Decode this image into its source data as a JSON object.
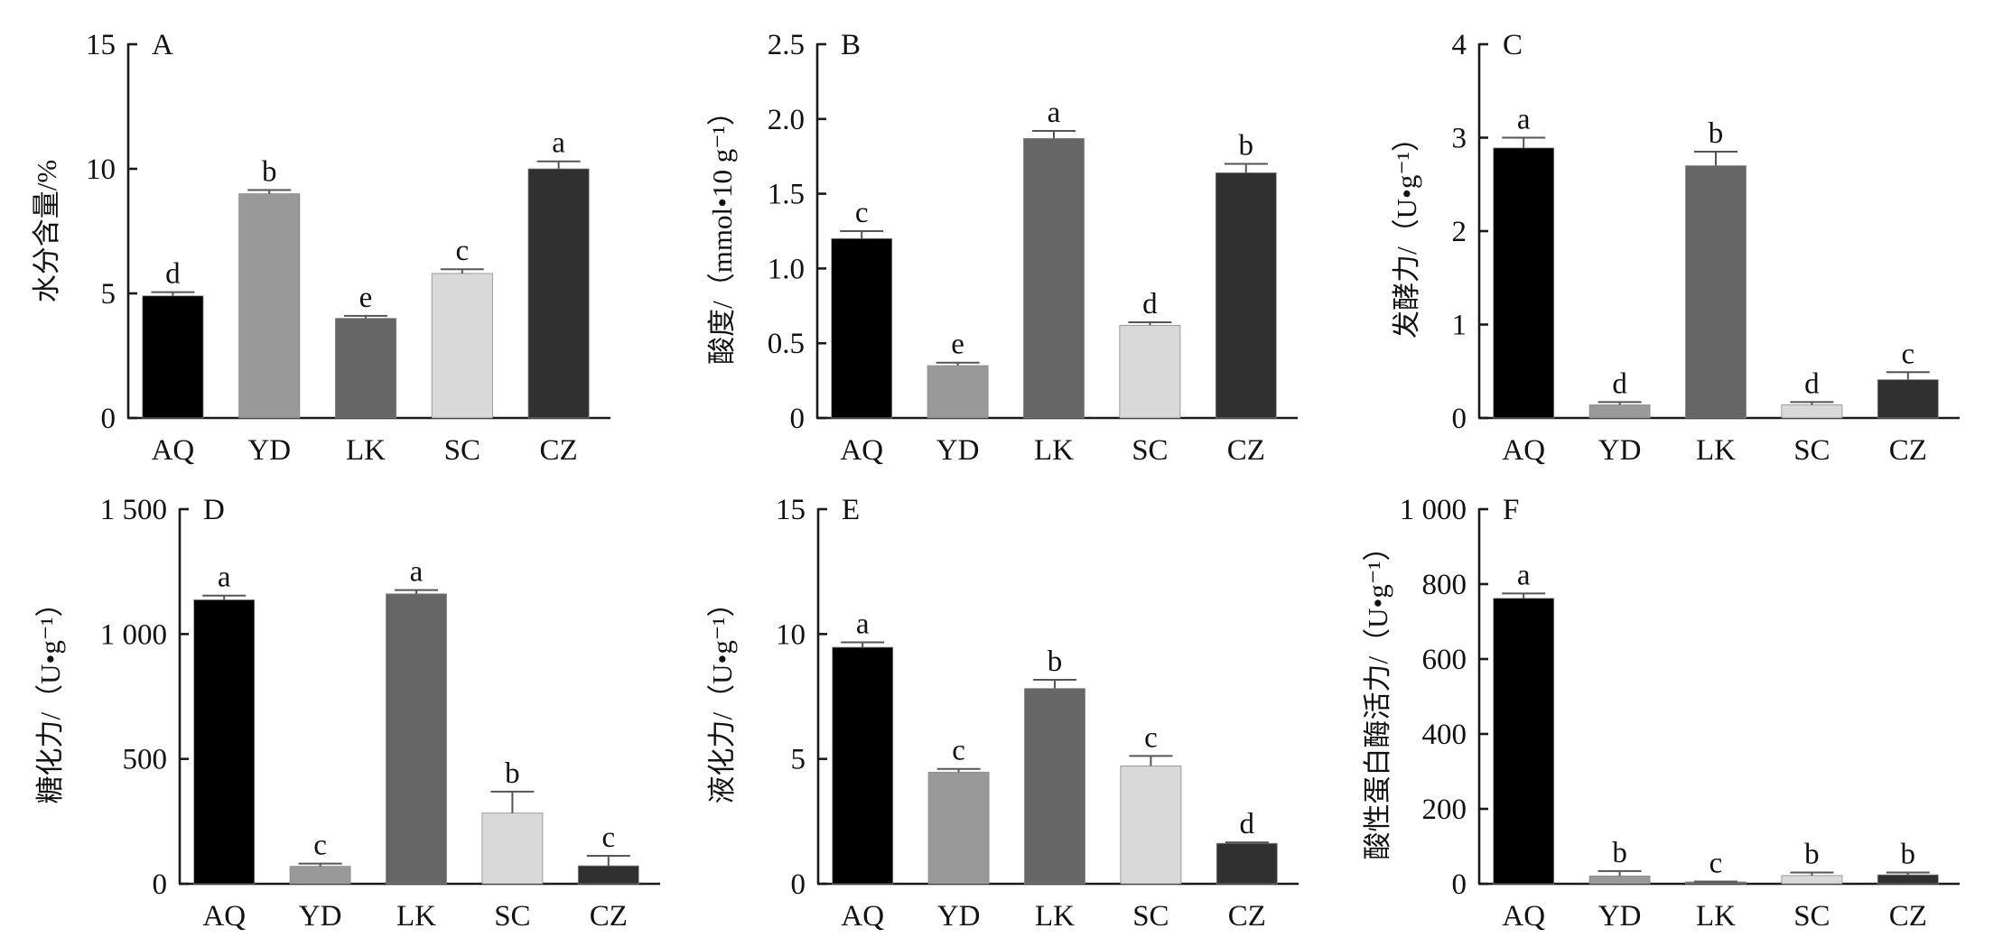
{
  "categories": [
    "AQ",
    "YD",
    "LK",
    "SC",
    "CZ"
  ],
  "bar_colors": {
    "AQ": "#000000",
    "YD": "#999999",
    "LK": "#666666",
    "SC": "#d9d9d9",
    "CZ": "#303030"
  },
  "chart_data": [
    {
      "type": "bar",
      "panel": "A",
      "title": "",
      "xlabel": "",
      "ylabel": "水分含量/%",
      "categories": [
        "AQ",
        "YD",
        "LK",
        "SC",
        "CZ"
      ],
      "values": [
        4.9,
        9.0,
        4.0,
        5.8,
        10.0
      ],
      "errors": [
        0.15,
        0.15,
        0.1,
        0.17,
        0.3
      ],
      "significance": [
        "d",
        "b",
        "e",
        "c",
        "a"
      ],
      "ylim": [
        0,
        15
      ],
      "yticks": [
        0,
        5,
        10,
        15
      ],
      "ytick_labels": [
        "0",
        "5",
        "10",
        "15"
      ],
      "grid": false,
      "legend": "none"
    },
    {
      "type": "bar",
      "panel": "B",
      "title": "",
      "xlabel": "",
      "ylabel": "酸度/（mmol•10 g⁻¹）",
      "categories": [
        "AQ",
        "YD",
        "LK",
        "SC",
        "CZ"
      ],
      "values": [
        1.2,
        0.35,
        1.87,
        0.62,
        1.64
      ],
      "errors": [
        0.05,
        0.02,
        0.05,
        0.02,
        0.06
      ],
      "significance": [
        "c",
        "e",
        "a",
        "d",
        "b"
      ],
      "ylim": [
        0,
        2.5
      ],
      "yticks": [
        0,
        0.5,
        1.0,
        1.5,
        2.0,
        2.5
      ],
      "ytick_labels": [
        "0",
        "0.5",
        "1.0",
        "1.5",
        "2.0",
        "2.5"
      ],
      "grid": false,
      "legend": "none"
    },
    {
      "type": "bar",
      "panel": "C",
      "title": "",
      "xlabel": "",
      "ylabel": "发酵力/（U•g⁻¹）",
      "categories": [
        "AQ",
        "YD",
        "LK",
        "SC",
        "CZ"
      ],
      "values": [
        2.89,
        0.14,
        2.7,
        0.14,
        0.41
      ],
      "errors": [
        0.11,
        0.03,
        0.15,
        0.03,
        0.08
      ],
      "significance": [
        "a",
        "d",
        "b",
        "d",
        "c"
      ],
      "ylim": [
        0,
        4
      ],
      "yticks": [
        0,
        1,
        2,
        3,
        4
      ],
      "ytick_labels": [
        "0",
        "1",
        "2",
        "3",
        "4"
      ],
      "grid": false,
      "legend": "none"
    },
    {
      "type": "bar",
      "panel": "D",
      "title": "",
      "xlabel": "",
      "ylabel": "糖化力/（U•g⁻¹）",
      "categories": [
        "AQ",
        "YD",
        "LK",
        "SC",
        "CZ"
      ],
      "values": [
        1137,
        70,
        1161,
        283,
        72
      ],
      "errors": [
        17,
        11,
        15,
        86,
        40
      ],
      "significance": [
        "a",
        "c",
        "a",
        "b",
        "c"
      ],
      "ylim": [
        0,
        1500
      ],
      "yticks": [
        0,
        500,
        1000,
        1500
      ],
      "ytick_labels": [
        "0",
        "500",
        "1 000",
        "1 500"
      ],
      "grid": false,
      "legend": "none"
    },
    {
      "type": "bar",
      "panel": "E",
      "title": "",
      "xlabel": "",
      "ylabel": "液化力/（U•g⁻¹）",
      "categories": [
        "AQ",
        "YD",
        "LK",
        "SC",
        "CZ"
      ],
      "values": [
        9.47,
        4.47,
        7.82,
        4.72,
        1.62
      ],
      "errors": [
        0.2,
        0.13,
        0.35,
        0.4,
        0.04
      ],
      "significance": [
        "a",
        "c",
        "b",
        "c",
        "d"
      ],
      "ylim": [
        0,
        15
      ],
      "yticks": [
        0,
        5,
        10,
        15
      ],
      "ytick_labels": [
        "0",
        "5",
        "10",
        "15"
      ],
      "grid": false,
      "legend": "none"
    },
    {
      "type": "bar",
      "panel": "F",
      "title": "",
      "xlabel": "",
      "ylabel": "酸性蛋白酶活力/（U•g⁻¹）",
      "categories": [
        "AQ",
        "YD",
        "LK",
        "SC",
        "CZ"
      ],
      "values": [
        762,
        21,
        5,
        22,
        24
      ],
      "errors": [
        13,
        13,
        1,
        8,
        6
      ],
      "significance": [
        "a",
        "b",
        "c",
        "b",
        "b"
      ],
      "ylim": [
        0,
        1000
      ],
      "yticks": [
        0,
        200,
        400,
        600,
        800,
        1000
      ],
      "ytick_labels": [
        "0",
        "200",
        "400",
        "600",
        "800",
        "1 000"
      ],
      "grid": false,
      "legend": "none"
    }
  ]
}
